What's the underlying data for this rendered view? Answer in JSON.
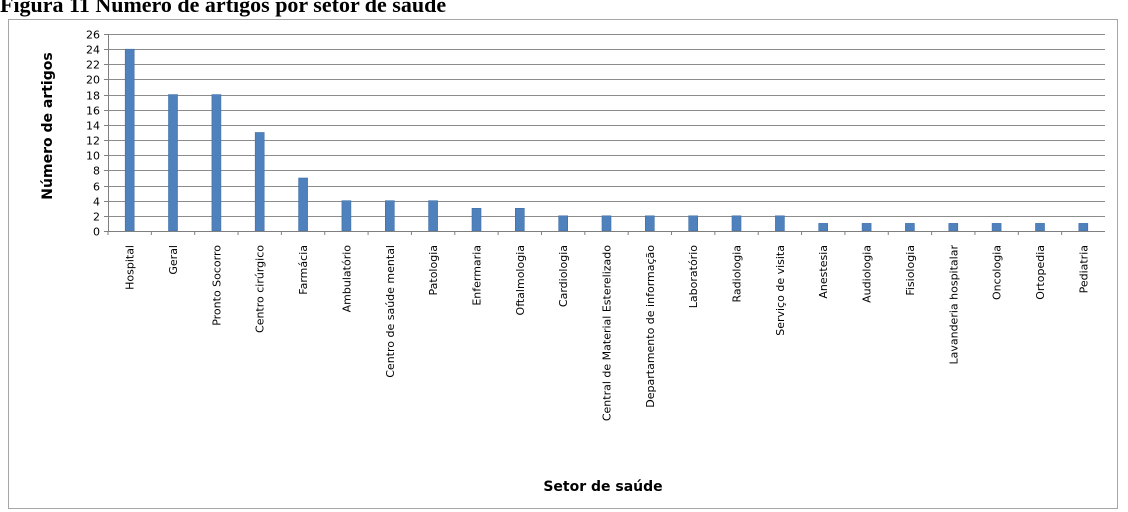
{
  "caption": {
    "label": "Figura 11",
    "text": "Número de artigos por setor de saúde"
  },
  "colors": {
    "bar": "#4f81bd",
    "bar_edge": "#3f6ea8",
    "grid": "#8c8c8c",
    "axis": "#7f7f7f",
    "frame": "#a6a6a6"
  },
  "chart_data": {
    "type": "bar",
    "title": "",
    "xlabel": "Setor de saúde",
    "ylabel": "Número de artigos",
    "ylim": [
      0,
      26
    ],
    "yticks": [
      0,
      2,
      4,
      6,
      8,
      10,
      12,
      14,
      16,
      18,
      20,
      22,
      24,
      26
    ],
    "grid": true,
    "legend": "none",
    "categories": [
      "Hospital",
      "Geral",
      "Pronto Socorro",
      "Centro cirúrgico",
      "Farmácia",
      "Ambulatório",
      "Centro de saúde mental",
      "Patologia",
      "Enfermaria",
      "Oftalmologia",
      "Cardiologia",
      "Central de Material Esterelizado",
      "Departamento de informação",
      "Laboratório",
      "Radiologia",
      "Serviço de visita",
      "Anestesia",
      "Audiologia",
      "Fisiologia",
      "Lavanderia hospitalar",
      "Oncologia",
      "Ortopedia",
      "Pediatria"
    ],
    "values": [
      24,
      18,
      18,
      13,
      7,
      4,
      4,
      4,
      3,
      3,
      2,
      2,
      2,
      2,
      2,
      2,
      1,
      1,
      1,
      1,
      1,
      1,
      1
    ]
  }
}
